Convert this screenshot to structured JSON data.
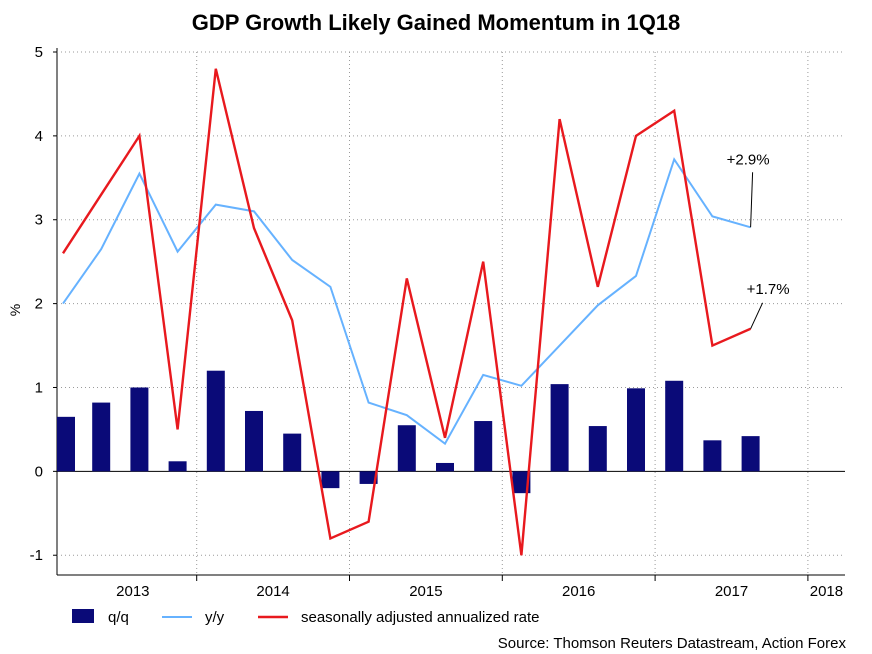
{
  "chart_data": {
    "type": "bar",
    "title": "GDP Growth Likely Gained Momentum in 1Q18",
    "ylabel": "%",
    "ylim": [
      -1.2,
      5
    ],
    "yticks": [
      -1,
      0,
      1,
      2,
      3,
      4,
      5
    ],
    "grid": true,
    "legend_position": "bottom",
    "x": [
      "2013Q1",
      "2013Q2",
      "2013Q3",
      "2013Q4",
      "2014Q1",
      "2014Q2",
      "2014Q3",
      "2014Q4",
      "2015Q1",
      "2015Q2",
      "2015Q3",
      "2015Q4",
      "2016Q1",
      "2016Q2",
      "2016Q3",
      "2016Q4",
      "2017Q1",
      "2017Q2",
      "2017Q3",
      "2017Q4"
    ],
    "year_labels": [
      "2013",
      "2014",
      "2015",
      "2016",
      "2017",
      "2018"
    ],
    "series": [
      {
        "name": "q/q",
        "kind": "bar",
        "color": "#0a0a78",
        "values": [
          0.65,
          0.82,
          1.0,
          0.12,
          1.2,
          0.72,
          0.45,
          -0.2,
          -0.15,
          0.55,
          0.1,
          0.6,
          -0.26,
          1.04,
          0.54,
          0.99,
          1.08,
          0.37,
          0.42,
          null
        ]
      },
      {
        "name": "y/y",
        "kind": "line",
        "color": "#66b2ff",
        "values": [
          2.0,
          2.65,
          3.55,
          2.62,
          3.18,
          3.1,
          2.52,
          2.2,
          0.82,
          0.67,
          0.33,
          1.15,
          1.02,
          1.5,
          1.98,
          2.33,
          3.72,
          3.04,
          2.91,
          null
        ]
      },
      {
        "name": "seasonally adjusted annualized rate",
        "kind": "line",
        "color": "#e8191e",
        "values": [
          2.6,
          3.3,
          4.0,
          0.5,
          4.8,
          2.9,
          1.8,
          -0.8,
          -0.6,
          2.3,
          0.4,
          2.5,
          -1.0,
          4.2,
          2.2,
          4.0,
          4.3,
          1.5,
          1.7,
          null
        ]
      }
    ],
    "annotations": [
      {
        "text": "+2.9%",
        "series": "y/y",
        "point_index": 18
      },
      {
        "text": "+1.7%",
        "series": "seasonally adjusted annualized rate",
        "point_index": 18
      }
    ],
    "source": "Source: Thomson Reuters Datastream, Action Forex"
  }
}
